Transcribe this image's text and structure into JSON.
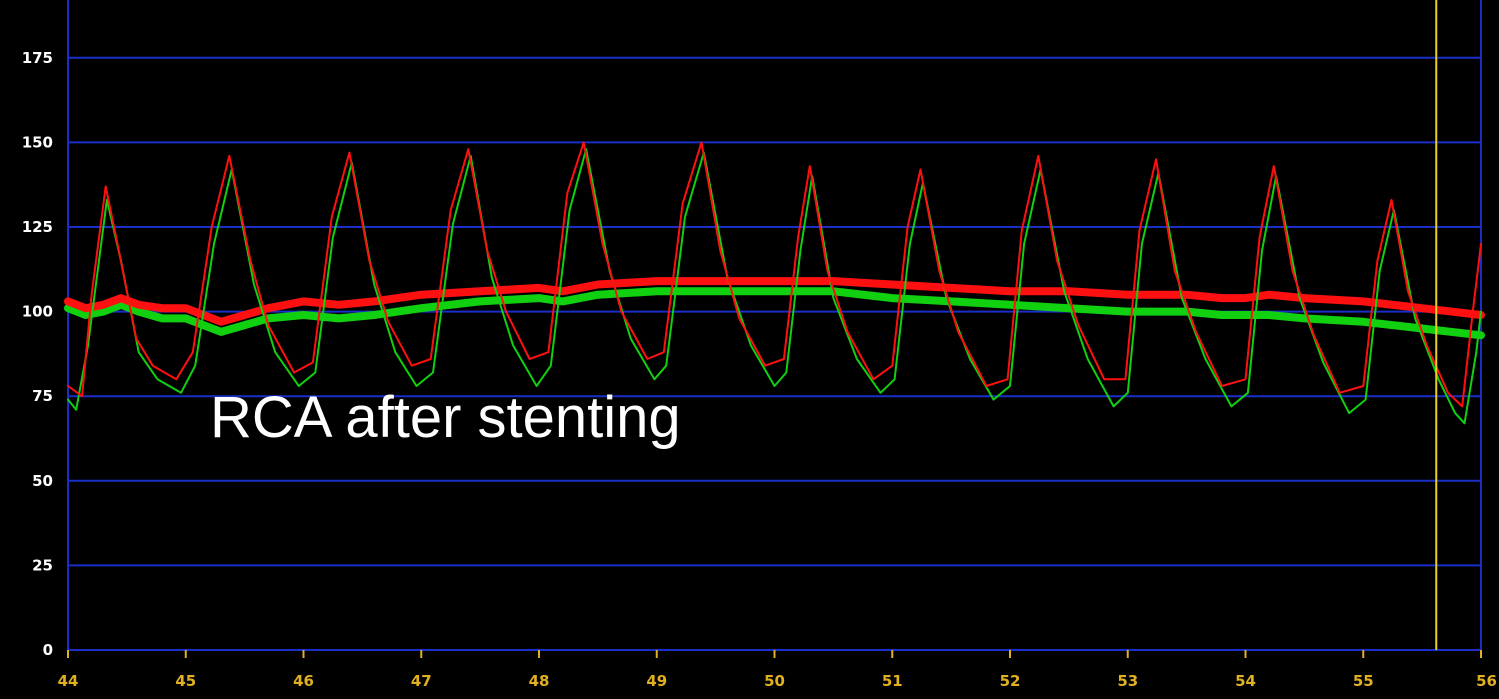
{
  "chart_data": {
    "type": "line",
    "title": "",
    "xlabel": "",
    "ylabel": "",
    "xlim": [
      44,
      56
    ],
    "ylim": [
      0,
      190
    ],
    "x_ticks": [
      "44",
      "45",
      "46",
      "47",
      "48",
      "49",
      "50",
      "51",
      "52",
      "53",
      "54",
      "55",
      "56"
    ],
    "y_ticks": [
      "0",
      "25",
      "50",
      "75",
      "100",
      "125",
      "150",
      "175"
    ],
    "grid": true,
    "annotation": "RCA after stenting",
    "cursor_x": 55.62,
    "colors": {
      "background": "#000000",
      "grid": "#1a2fc8",
      "cursor": "#e8d020",
      "red": "#ff1010",
      "green": "#10d010",
      "y_tick_text": "#ffffff",
      "x_tick_text": "#e0b020"
    },
    "series": [
      {
        "color": "red",
        "kind": "phasic",
        "x": [
          44.0,
          44.12,
          44.2,
          44.32,
          44.42,
          44.58,
          44.72,
          44.92,
          45.06,
          45.22,
          45.37,
          45.55,
          45.7,
          45.92,
          46.08,
          46.24,
          46.39,
          46.56,
          46.72,
          46.92,
          47.08,
          47.25,
          47.4,
          47.56,
          47.72,
          47.92,
          48.08,
          48.24,
          48.38,
          48.54,
          48.7,
          48.92,
          49.06,
          49.22,
          49.38,
          49.54,
          49.7,
          49.92,
          50.08,
          50.2,
          50.3,
          50.45,
          50.62,
          50.84,
          51.0,
          51.13,
          51.24,
          51.4,
          51.56,
          51.8,
          51.98,
          52.1,
          52.24,
          52.4,
          52.58,
          52.8,
          52.98,
          53.1,
          53.24,
          53.4,
          53.58,
          53.8,
          54.0,
          54.12,
          54.24,
          54.4,
          54.58,
          54.8,
          55.0,
          55.12,
          55.24,
          55.38,
          55.54,
          55.72,
          55.84,
          55.93,
          56.0
        ],
        "y": [
          78,
          75,
          105,
          137,
          120,
          92,
          84,
          80,
          88,
          125,
          146,
          115,
          96,
          82,
          85,
          128,
          147,
          115,
          97,
          84,
          86,
          130,
          148,
          118,
          100,
          86,
          88,
          135,
          150,
          120,
          100,
          86,
          88,
          132,
          150,
          118,
          98,
          84,
          86,
          122,
          143,
          112,
          94,
          80,
          84,
          125,
          142,
          112,
          94,
          78,
          80,
          124,
          146,
          115,
          96,
          80,
          80,
          124,
          145,
          112,
          94,
          78,
          80,
          122,
          143,
          112,
          93,
          76,
          78,
          115,
          133,
          106,
          90,
          76,
          72,
          100,
          120
        ]
      },
      {
        "color": "green",
        "kind": "phasic",
        "x": [
          44.0,
          44.07,
          44.17,
          44.33,
          44.45,
          44.6,
          44.76,
          44.96,
          45.08,
          45.24,
          45.39,
          45.58,
          45.76,
          45.96,
          46.1,
          46.25,
          46.41,
          46.6,
          46.78,
          46.96,
          47.1,
          47.27,
          47.42,
          47.6,
          47.78,
          47.98,
          48.1,
          48.26,
          48.4,
          48.6,
          48.78,
          48.98,
          49.08,
          49.24,
          49.4,
          49.6,
          49.8,
          50.0,
          50.1,
          50.22,
          50.32,
          50.5,
          50.7,
          50.9,
          51.02,
          51.15,
          51.26,
          51.46,
          51.66,
          51.86,
          52.0,
          52.12,
          52.26,
          52.46,
          52.66,
          52.88,
          53.0,
          53.12,
          53.26,
          53.46,
          53.66,
          53.88,
          54.02,
          54.14,
          54.26,
          54.46,
          54.66,
          54.88,
          55.02,
          55.14,
          55.26,
          55.44,
          55.64,
          55.78,
          55.86,
          55.96,
          56.0
        ],
        "y": [
          74,
          71,
          90,
          133,
          115,
          88,
          80,
          76,
          84,
          120,
          142,
          108,
          88,
          78,
          82,
          122,
          144,
          108,
          88,
          78,
          82,
          126,
          146,
          110,
          90,
          78,
          84,
          130,
          148,
          112,
          92,
          80,
          84,
          128,
          147,
          110,
          90,
          78,
          82,
          118,
          140,
          104,
          86,
          76,
          80,
          120,
          138,
          104,
          86,
          74,
          78,
          120,
          142,
          106,
          86,
          72,
          76,
          120,
          141,
          104,
          86,
          72,
          76,
          118,
          140,
          104,
          85,
          70,
          74,
          112,
          130,
          98,
          80,
          70,
          67,
          88,
          100
        ]
      },
      {
        "color": "red",
        "kind": "mean",
        "x": [
          44.0,
          44.15,
          44.3,
          44.45,
          44.6,
          44.8,
          45.0,
          45.15,
          45.3,
          45.5,
          45.7,
          46.0,
          46.3,
          46.6,
          47.0,
          47.5,
          48.0,
          48.2,
          48.5,
          49.0,
          49.5,
          50.0,
          50.5,
          51.0,
          51.5,
          52.0,
          52.5,
          53.0,
          53.5,
          53.8,
          54.0,
          54.2,
          54.5,
          55.0,
          55.5,
          56.0
        ],
        "y": [
          103,
          101,
          102,
          104,
          102,
          101,
          101,
          99,
          97,
          99,
          101,
          103,
          102,
          103,
          105,
          106,
          107,
          106,
          108,
          109,
          109,
          109,
          109,
          108,
          107,
          106,
          106,
          105,
          105,
          104,
          104,
          105,
          104,
          103,
          101,
          99
        ]
      },
      {
        "color": "green",
        "kind": "mean",
        "x": [
          44.0,
          44.15,
          44.3,
          44.45,
          44.6,
          44.8,
          45.0,
          45.15,
          45.3,
          45.5,
          45.7,
          46.0,
          46.3,
          46.6,
          47.0,
          47.5,
          48.0,
          48.2,
          48.5,
          49.0,
          49.5,
          50.0,
          50.5,
          51.0,
          51.5,
          52.0,
          52.5,
          53.0,
          53.5,
          53.8,
          54.0,
          54.2,
          54.5,
          55.0,
          55.5,
          56.0
        ],
        "y": [
          101,
          99,
          100,
          102,
          100,
          98,
          98,
          96,
          94,
          96,
          98,
          99,
          98,
          99,
          101,
          103,
          104,
          103,
          105,
          106,
          106,
          106,
          106,
          104,
          103,
          102,
          101,
          100,
          100,
          99,
          99,
          99,
          98,
          97,
          95,
          93
        ]
      }
    ]
  }
}
